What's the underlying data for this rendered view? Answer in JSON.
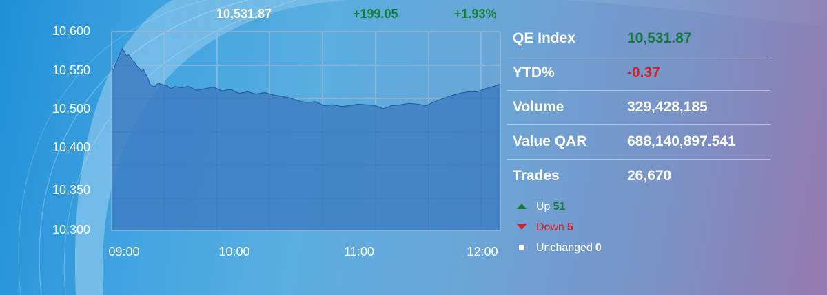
{
  "header": {
    "value": "10,531.87",
    "change": "+199.05",
    "percent": "+1.93%"
  },
  "stats": [
    {
      "label": "QE Index",
      "value": "10,531.87",
      "tone": "green"
    },
    {
      "label": "YTD%",
      "value": "-0.37",
      "tone": "red"
    },
    {
      "label": "Volume",
      "value": "329,428,185",
      "tone": "white"
    },
    {
      "label": "Value QAR",
      "value": "688,140,897.541",
      "tone": "white"
    },
    {
      "label": "Trades",
      "value": "26,670",
      "tone": "white"
    }
  ],
  "breadth": {
    "up_label": "Up",
    "up_count": "51",
    "down_label": "Down",
    "down_count": "5",
    "unchanged_label": "Unchanged",
    "unchanged_count": "0"
  },
  "colors": {
    "green": "#137a3a",
    "red": "#d81f26",
    "area_fill": "#3f7fc4",
    "area_line": "#255f9e"
  },
  "chart_data": {
    "type": "area",
    "title": "",
    "xlabel": "",
    "ylabel": "",
    "yticks": [
      "10,600",
      "10,550",
      "10,500",
      "10,400",
      "10,350",
      "10,300"
    ],
    "xticks": [
      {
        "label": "09:00",
        "t": 0
      },
      {
        "label": "10:00",
        "t": 60
      },
      {
        "label": "11:00",
        "t": 120
      },
      {
        "label": "12:00",
        "t": 180
      }
    ],
    "xlim": [
      0,
      183
    ],
    "series": [
      {
        "t": [
          0,
          1,
          2,
          3,
          4,
          5,
          6,
          7,
          8,
          9,
          10,
          11,
          12,
          13,
          14,
          15,
          16,
          17,
          18,
          20,
          22,
          24,
          26,
          28,
          30,
          33,
          36,
          40,
          44,
          48,
          52,
          56,
          60,
          64,
          68,
          72,
          76,
          80,
          84,
          88,
          92,
          96,
          100,
          104,
          108,
          112,
          116,
          120,
          124,
          128,
          132,
          136,
          140,
          144,
          148,
          152,
          156,
          160,
          164,
          168,
          172,
          176,
          180,
          183
        ],
        "y": [
          10553,
          10550,
          10560,
          10565,
          10572,
          10578,
          10574,
          10568,
          10570,
          10566,
          10562,
          10560,
          10555,
          10552,
          10549,
          10551,
          10545,
          10540,
          10532,
          10528,
          10533,
          10531,
          10530,
          10526,
          10529,
          10527,
          10529,
          10524,
          10526,
          10528,
          10523,
          10525,
          10520,
          10522,
          10519,
          10521,
          10518,
          10516,
          10514,
          10510,
          10508,
          10509,
          10504,
          10505,
          10503,
          10504,
          10506,
          10505,
          10504,
          10500,
          10504,
          10505,
          10507,
          10506,
          10504,
          10509,
          10513,
          10517,
          10520,
          10522,
          10522,
          10526,
          10529,
          10532
        ]
      }
    ]
  }
}
